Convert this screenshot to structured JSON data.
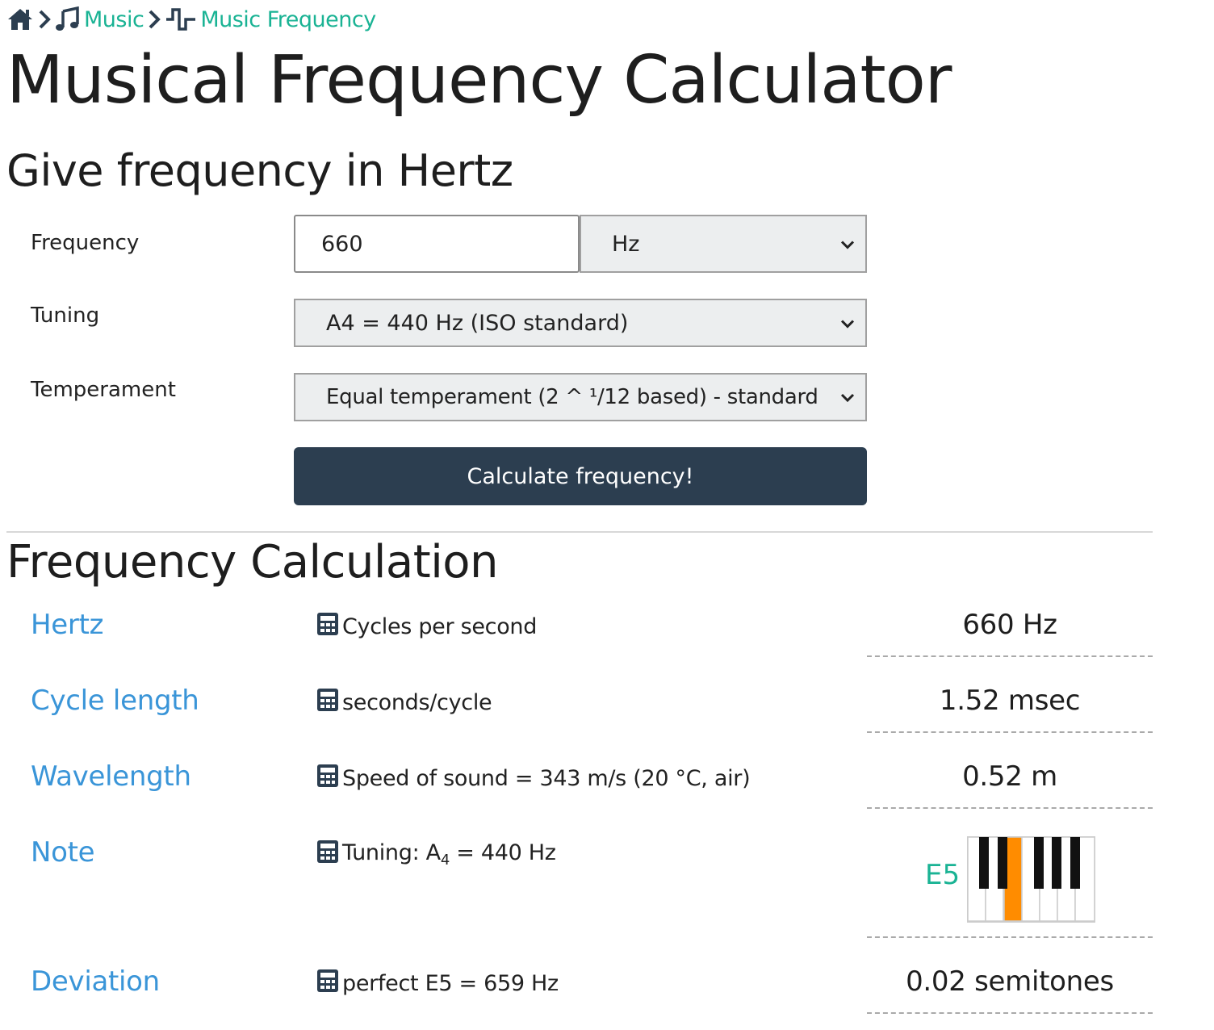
{
  "breadcrumb": {
    "items": [
      {
        "label": ""
      },
      {
        "label": "Music"
      },
      {
        "label": "Music Frequency"
      }
    ]
  },
  "page_title": "Musical Frequency Calculator",
  "form": {
    "heading": "Give frequency in Hertz",
    "frequency_label": "Frequency",
    "frequency_value": "660",
    "unit_selected": "Hz",
    "tuning_label": "Tuning",
    "tuning_selected": "A4 = 440 Hz (ISO standard)",
    "temperament_label": "Temperament",
    "temperament_selected": "Equal temperament (2 ^ ¹/12 based) - standard",
    "submit_label": "Calculate frequency!"
  },
  "results": {
    "heading": "Frequency Calculation",
    "rows": [
      {
        "name": "Hertz",
        "desc": "Cycles per second",
        "value": "660 Hz"
      },
      {
        "name": "Cycle length",
        "desc": "seconds/cycle",
        "value": "1.52 msec"
      },
      {
        "name": "Wavelength",
        "desc": "Speed of sound = 343 m/s (20 °C, air)",
        "value": "0.52 m"
      },
      {
        "name": "Note",
        "desc_prefix": "Tuning: A",
        "desc_sub": "4",
        "desc_suffix": " = 440 Hz",
        "note": "E5"
      },
      {
        "name": "Deviation",
        "desc": "perfect E5 = 659 Hz",
        "value": "0.02 semitones"
      }
    ]
  },
  "colors": {
    "link": "#1ab394",
    "result_name": "#3a95d8",
    "button_bg": "#2c3e50",
    "highlight_key": "#ff8c00"
  },
  "icons": [
    "home-icon",
    "chevron-right-icon",
    "music-note-icon",
    "square-wave-icon",
    "calculator-icon",
    "select-chevron-icon"
  ],
  "piano": {
    "highlighted_key": "E"
  }
}
